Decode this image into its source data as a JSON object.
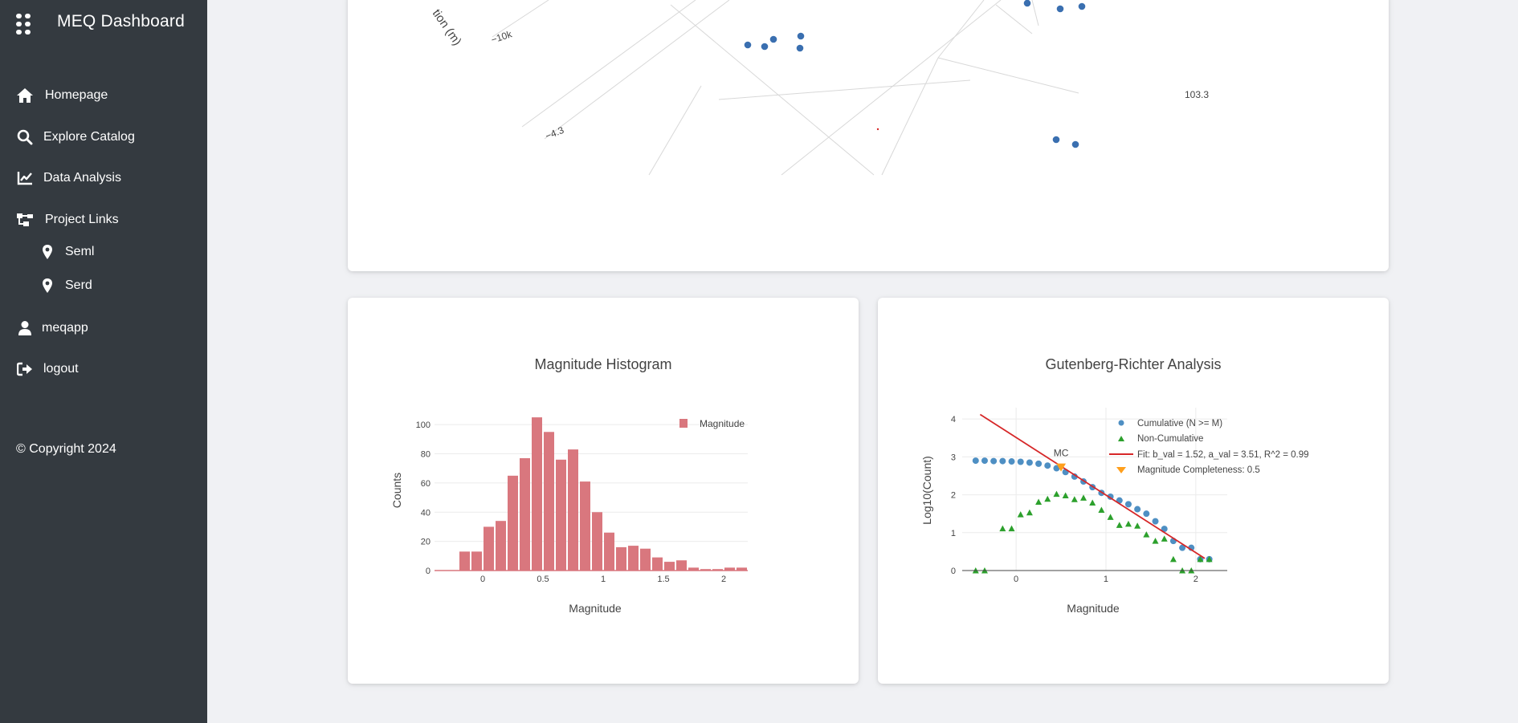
{
  "app": {
    "title": "MEQ Dashboard"
  },
  "sidebar": {
    "items": [
      {
        "label": "Homepage",
        "icon": "home-icon"
      },
      {
        "label": "Explore Catalog",
        "icon": "search-icon"
      },
      {
        "label": "Data Analysis",
        "icon": "line-chart-icon"
      },
      {
        "label": "Project Links",
        "icon": "sitemap-icon"
      }
    ],
    "subitems": [
      {
        "label": "Seml",
        "icon": "map-pin-icon"
      },
      {
        "label": "Serd",
        "icon": "map-pin-icon"
      }
    ],
    "user": {
      "label": "meqapp",
      "icon": "user-icon"
    },
    "logout": {
      "label": "logout",
      "icon": "sign-out-icon"
    },
    "copyright": "© Copyright 2024"
  },
  "colors": {
    "sidebar_bg": "#343a40",
    "page_bg": "#f0f1f4",
    "hist_bar": "#d9777e",
    "cumulative": "#4e8fc3",
    "noncumulative": "#2ca02c",
    "fit_line": "#d62728",
    "mc_marker": "#ff9f1c",
    "scatter3d_point": "#3a6fb0"
  },
  "scatter3d": {
    "axis_title_partial": "tion (m)",
    "tick_labels": [
      "−10k",
      "−4.3",
      "103.3"
    ]
  },
  "chart_data": [
    {
      "type": "bar",
      "title": "Magnitude Histogram",
      "xlabel": "Magnitude",
      "ylabel": "Counts",
      "legend": [
        "Magnitude"
      ],
      "legend_position": "top-right",
      "xlim": [
        -0.4,
        2.2
      ],
      "ylim": [
        0,
        110
      ],
      "x_ticks": [
        "0",
        "0.5",
        "1",
        "1.5",
        "2"
      ],
      "y_ticks": [
        "0",
        "20",
        "40",
        "60",
        "80",
        "100"
      ],
      "bin_width": 0.1,
      "bin_centers": [
        -0.15,
        -0.05,
        0.05,
        0.15,
        0.25,
        0.35,
        0.45,
        0.55,
        0.65,
        0.75,
        0.85,
        0.95,
        1.05,
        1.15,
        1.25,
        1.35,
        1.45,
        1.55,
        1.65,
        1.75,
        1.85,
        1.95,
        2.05,
        2.15
      ],
      "values": [
        13,
        13,
        30,
        34,
        65,
        77,
        105,
        95,
        76,
        83,
        61,
        40,
        26,
        16,
        17,
        15,
        9,
        6,
        7,
        2,
        1,
        1,
        2,
        2
      ]
    },
    {
      "type": "scatter",
      "title": "Gutenberg-Richter Analysis",
      "xlabel": "Magnitude",
      "ylabel": "Log10(Count)",
      "xlim": [
        -0.6,
        2.35
      ],
      "ylim": [
        0,
        4.3
      ],
      "x_ticks": [
        "0",
        "1",
        "2"
      ],
      "y_ticks": [
        "0",
        "1",
        "2",
        "3",
        "4"
      ],
      "legend_position": "top-right",
      "series": [
        {
          "name": "Cumulative (N >= M)",
          "marker": "circle",
          "x": [
            -0.45,
            -0.35,
            -0.25,
            -0.15,
            -0.05,
            0.05,
            0.15,
            0.25,
            0.35,
            0.45,
            0.55,
            0.65,
            0.75,
            0.85,
            0.95,
            1.05,
            1.15,
            1.25,
            1.35,
            1.45,
            1.55,
            1.65,
            1.75,
            1.85,
            1.95,
            2.05,
            2.15
          ],
          "y": [
            2.9,
            2.9,
            2.89,
            2.89,
            2.88,
            2.87,
            2.85,
            2.82,
            2.77,
            2.7,
            2.6,
            2.48,
            2.35,
            2.2,
            2.05,
            1.95,
            1.85,
            1.75,
            1.62,
            1.5,
            1.3,
            1.1,
            0.78,
            0.6,
            0.6,
            0.3,
            0.3
          ]
        },
        {
          "name": "Non-Cumulative",
          "marker": "triangle-up",
          "x": [
            -0.45,
            -0.35,
            -0.15,
            -0.05,
            0.05,
            0.15,
            0.25,
            0.35,
            0.45,
            0.55,
            0.65,
            0.75,
            0.85,
            0.95,
            1.05,
            1.15,
            1.25,
            1.35,
            1.45,
            1.55,
            1.65,
            1.75,
            1.85,
            1.95,
            2.05,
            2.15
          ],
          "y": [
            0.0,
            0.0,
            1.11,
            1.11,
            1.48,
            1.53,
            1.81,
            1.89,
            2.02,
            1.98,
            1.88,
            1.92,
            1.79,
            1.6,
            1.41,
            1.2,
            1.23,
            1.18,
            0.95,
            0.78,
            0.84,
            0.3,
            0.0,
            0.0,
            0.3,
            0.3
          ]
        },
        {
          "name": "Fit: b_val = 1.52, a_val = 3.51, R^2 = 0.99",
          "marker": "line",
          "x": [
            -0.4,
            2.1
          ],
          "y": [
            4.12,
            0.32
          ]
        },
        {
          "name": "Magnitude Completeness: 0.5",
          "marker": "triangle-down",
          "x": [
            0.5
          ],
          "y": [
            2.72
          ]
        }
      ],
      "annotations": [
        {
          "text": "MC",
          "x": 0.5,
          "y": 2.72
        }
      ]
    }
  ]
}
